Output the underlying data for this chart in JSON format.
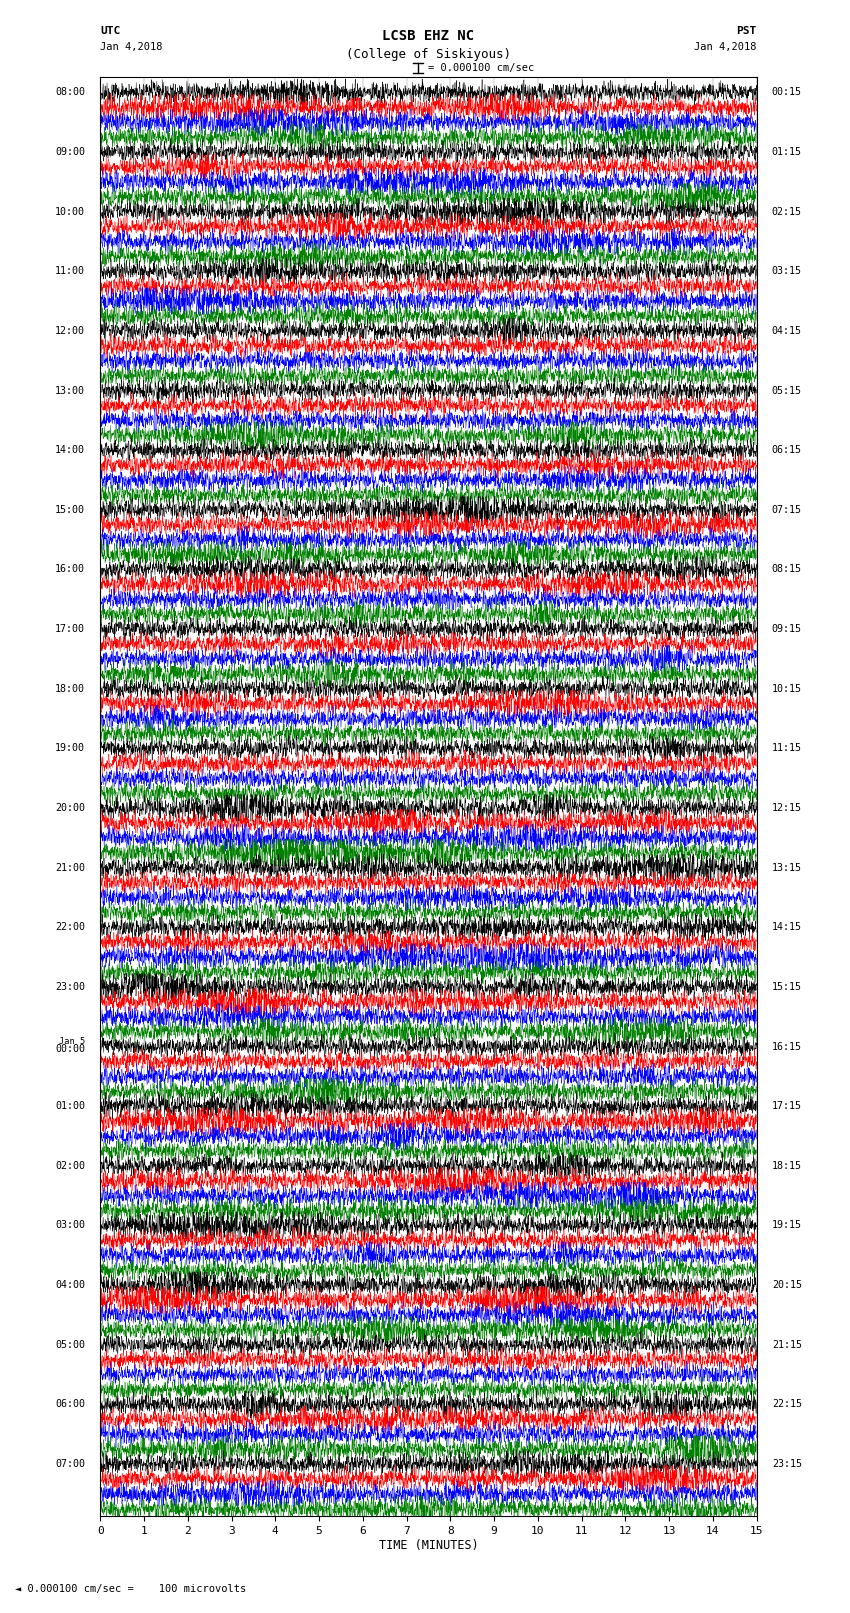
{
  "title_line1": "LCSB EHZ NC",
  "title_line2": "(College of Siskiyous)",
  "scale_label": "= 0.000100 cm/sec",
  "xlabel": "TIME (MINUTES)",
  "footer": "0.000100 cm/sec =    100 microvolts",
  "utc_header": "UTC",
  "utc_date": "Jan 4,2018",
  "pst_header": "PST",
  "pst_date": "Jan 4,2018",
  "xmin": 0,
  "xmax": 15,
  "xticks": [
    0,
    1,
    2,
    3,
    4,
    5,
    6,
    7,
    8,
    9,
    10,
    11,
    12,
    13,
    14,
    15
  ],
  "colors_cycle": [
    "black",
    "red",
    "blue",
    "green"
  ],
  "n_rows": 96,
  "utc_labels": [
    "08:00",
    "09:00",
    "10:00",
    "11:00",
    "12:00",
    "13:00",
    "14:00",
    "15:00",
    "16:00",
    "17:00",
    "18:00",
    "19:00",
    "20:00",
    "21:00",
    "22:00",
    "23:00",
    "Jan 5\n00:00",
    "01:00",
    "02:00",
    "03:00",
    "04:00",
    "05:00",
    "06:00",
    "07:00"
  ],
  "pst_labels": [
    "00:15",
    "01:15",
    "02:15",
    "03:15",
    "04:15",
    "05:15",
    "06:15",
    "07:15",
    "08:15",
    "09:15",
    "10:15",
    "11:15",
    "12:15",
    "13:15",
    "14:15",
    "15:15",
    "16:15",
    "17:15",
    "18:15",
    "19:15",
    "20:15",
    "21:15",
    "22:15",
    "23:15"
  ],
  "rows_per_hour": 4,
  "fig_width": 8.5,
  "fig_height": 16.13,
  "dpi": 100
}
